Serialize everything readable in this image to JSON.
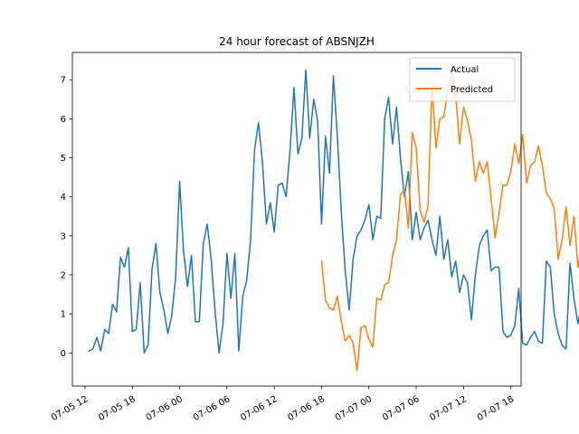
{
  "chart_data": {
    "type": "line",
    "title": "24 hour forecast of ABSNJZH",
    "xlabel": "",
    "ylabel": "",
    "x_axis": {
      "type": "time",
      "ticks": [
        "07-05 12",
        "07-05 18",
        "07-06 00",
        "07-06 06",
        "07-06 12",
        "07-06 18",
        "07-07 00",
        "07-07 06",
        "07-07 12",
        "07-07 18"
      ],
      "range": [
        "07-05 10:24",
        "07-07 19:18"
      ]
    },
    "ylim": [
      -0.85,
      7.7
    ],
    "y_ticks": [
      "0",
      "1",
      "2",
      "3",
      "4",
      "5",
      "6",
      "7"
    ],
    "grid": false,
    "legend": {
      "position": "top-right"
    },
    "series": [
      {
        "name": "Actual",
        "color": "#1f77b4",
        "start": "07-05 12:30",
        "step_minutes": 30,
        "values": [
          0.05,
          0.1,
          0.4,
          0.05,
          0.6,
          0.5,
          1.25,
          1.05,
          2.45,
          2.2,
          2.7,
          0.55,
          0.6,
          1.8,
          0.0,
          0.2,
          2.15,
          2.8,
          1.55,
          1.1,
          0.5,
          0.95,
          1.95,
          4.4,
          2.6,
          1.7,
          2.5,
          0.8,
          0.8,
          2.8,
          3.3,
          2.4,
          1.05,
          0.0,
          0.75,
          2.55,
          1.4,
          2.55,
          0.05,
          1.45,
          1.85,
          2.9,
          5.2,
          5.9,
          4.9,
          3.3,
          3.85,
          3.1,
          4.3,
          4.35,
          4.0,
          5.2,
          6.8,
          5.1,
          5.5,
          7.25,
          5.5,
          6.5,
          5.95,
          3.3,
          5.55,
          4.6,
          7.1,
          5.55,
          3.6,
          2.1,
          1.1,
          2.4,
          3.0,
          3.15,
          3.4,
          3.8,
          2.9,
          3.5,
          3.45,
          6.0,
          6.55,
          5.35,
          6.3,
          5.0,
          4.0,
          4.65,
          2.9,
          3.6,
          2.9,
          3.2,
          3.4,
          2.9,
          2.5,
          3.5,
          2.4,
          2.9,
          1.95,
          2.35,
          1.55,
          2.0,
          1.8,
          0.85,
          2.0,
          2.75,
          3.0,
          3.15,
          2.1,
          2.2,
          2.2,
          0.55,
          0.4,
          0.45,
          0.7,
          1.65,
          0.25,
          0.2,
          0.4,
          0.55,
          0.3,
          0.25,
          2.35,
          2.2,
          1.0,
          0.5,
          0.2,
          0.1,
          2.3,
          1.4,
          0.75,
          1.25,
          1.25,
          0.9,
          1.3,
          0.85,
          1.5,
          1.55,
          1.7,
          0.4,
          0.5,
          1.1,
          1.8,
          1.3,
          1.65,
          1.05
        ]
      },
      {
        "name": "Predicted",
        "color": "#ff7f0e",
        "start": "07-06 18:00",
        "step_minutes": 30,
        "values": [
          2.35,
          1.35,
          1.15,
          1.1,
          1.45,
          0.8,
          0.3,
          0.45,
          0.25,
          -0.45,
          0.65,
          0.7,
          0.35,
          0.15,
          1.4,
          1.35,
          1.75,
          1.8,
          2.5,
          2.9,
          4.05,
          4.2,
          3.2,
          5.65,
          5.25,
          3.65,
          3.35,
          3.75,
          6.9,
          5.25,
          6.0,
          6.05,
          6.75,
          7.2,
          6.6,
          5.35,
          6.3,
          5.95,
          5.45,
          4.4,
          4.9,
          4.6,
          4.9,
          3.95,
          2.95,
          3.6,
          4.3,
          4.3,
          4.65,
          5.35,
          4.85,
          5.6,
          4.35,
          4.8,
          4.9,
          5.3,
          4.8,
          4.1,
          3.95,
          3.7,
          2.4,
          2.9,
          3.75,
          2.75,
          3.5,
          2.2,
          2.7,
          3.5,
          3.35,
          3.9,
          4.85,
          4.85,
          2.95,
          3.35,
          3.5,
          3.5,
          4.0,
          3.95,
          3.4,
          2.95,
          3.7,
          5.05,
          4.5,
          3.95,
          3.8,
          4.1,
          4.0,
          3.2,
          3.0,
          2.5,
          3.5,
          3.8,
          2.35,
          3.1,
          3.65,
          3.65,
          3.0,
          3.5,
          3.95,
          3.65,
          3.7,
          4.45,
          4.1,
          4.75,
          4.2,
          4.3,
          3.3,
          3.15,
          3.7,
          2.9,
          3.5,
          2.2,
          2.6,
          2.15,
          3.6,
          2.6,
          3.45,
          3.05,
          4.15,
          4.0,
          2.35,
          3.3,
          3.6,
          4.2,
          3.8,
          3.85,
          4.25,
          5.1,
          5.25,
          4.95,
          4.75,
          4.5,
          4.7,
          5.4,
          5.15,
          5.2,
          5.15
        ]
      }
    ]
  }
}
